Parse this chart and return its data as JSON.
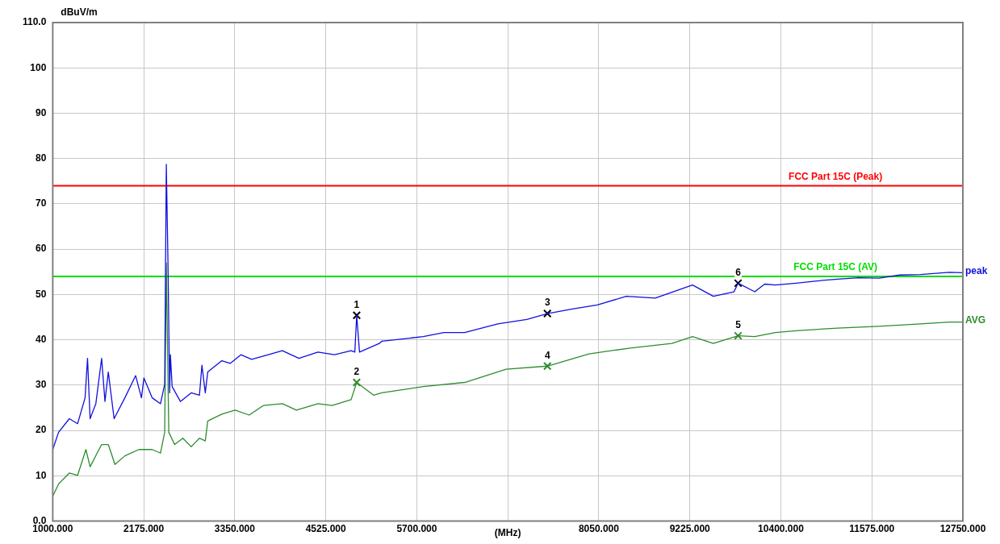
{
  "chart_data": {
    "type": "line",
    "xlabel": "(MHz)",
    "ylabel": "dBuV/m",
    "xlim": [
      1000,
      12750
    ],
    "xticks": [
      {
        "value": 1000,
        "label": "1000.000"
      },
      {
        "value": 2175,
        "label": "2175.000"
      },
      {
        "value": 3350,
        "label": "3350.000"
      },
      {
        "value": 4525,
        "label": "4525.000"
      },
      {
        "value": 5700,
        "label": "5700.000"
      },
      {
        "value": 6875,
        "label": null
      },
      {
        "value": 8050,
        "label": "8050.000"
      },
      {
        "value": 9225,
        "label": "9225.000"
      },
      {
        "value": 10400,
        "label": "10400.000"
      },
      {
        "value": 11575,
        "label": "11575.000"
      },
      {
        "value": 12750,
        "label": "12750.000"
      }
    ],
    "ylim": [
      0,
      110
    ],
    "yticks": [
      {
        "value": 0,
        "label": "0.0"
      },
      10,
      20,
      30,
      40,
      50,
      60,
      70,
      80,
      90,
      100,
      {
        "value": 110,
        "label": "110.0"
      }
    ],
    "grid": true,
    "series": [
      {
        "name": "peak",
        "type": "line",
        "marker": "none",
        "color": "#1010e0",
        "x": [
          1000,
          1075,
          1214,
          1321,
          1417,
          1449,
          1482,
          1556,
          1631,
          1674,
          1717,
          1792,
          1931,
          2070,
          2145,
          2177,
          2284,
          2391,
          2445,
          2466,
          2487,
          2509,
          2519,
          2541,
          2648,
          2787,
          2894,
          2926,
          2969,
          3001,
          3183,
          3290,
          3429,
          3568,
          3782,
          3964,
          4178,
          4424,
          4638,
          4852,
          4900,
          4924,
          4960,
          5216,
          5248,
          5783,
          6050,
          6318,
          6746,
          7120,
          7386,
          7709,
          8030,
          8404,
          8779,
          9260,
          9528,
          9795,
          9848,
          10063,
          10191,
          10330,
          10598,
          10865,
          11133,
          11400,
          11668,
          11935,
          12203,
          12577,
          12750
        ],
        "values": [
          15.8,
          19.6,
          22.6,
          21.5,
          27.2,
          35.9,
          22.6,
          25.9,
          35.9,
          26.4,
          32.9,
          22.6,
          27.2,
          32.1,
          27.2,
          31.6,
          27.2,
          25.9,
          30.2,
          78.7,
          57.6,
          28.3,
          36.7,
          29.7,
          26.4,
          28.3,
          27.8,
          34.4,
          28.3,
          32.9,
          35.4,
          34.8,
          36.7,
          35.7,
          36.7,
          37.6,
          35.9,
          37.3,
          36.7,
          37.6,
          37.3,
          45.4,
          37.3,
          39.2,
          39.7,
          40.7,
          41.6,
          41.6,
          43.5,
          44.5,
          45.8,
          46.8,
          47.7,
          49.6,
          49.2,
          52.1,
          49.6,
          50.6,
          52.5,
          50.6,
          52.3,
          52.1,
          52.5,
          53.0,
          53.4,
          53.7,
          53.6,
          54.3,
          54.4,
          54.9,
          54.8
        ]
      },
      {
        "name": "AVG",
        "type": "line",
        "marker": "none",
        "color": "#2e8b2e",
        "x": [
          1000,
          1075,
          1214,
          1321,
          1428,
          1482,
          1631,
          1717,
          1803,
          1931,
          2113,
          2284,
          2391,
          2445,
          2466,
          2498,
          2573,
          2680,
          2787,
          2894,
          2969,
          3001,
          3183,
          3354,
          3536,
          3718,
          3964,
          4146,
          4424,
          4606,
          4852,
          4924,
          5141,
          5248,
          5783,
          6318,
          6853,
          7386,
          7923,
          8458,
          8993,
          9260,
          9528,
          9848,
          10063,
          10330,
          10598,
          11133,
          11668,
          12203,
          12577,
          12750
        ],
        "values": [
          5.5,
          8.2,
          10.6,
          10.1,
          15.8,
          12.0,
          16.9,
          16.9,
          12.5,
          14.4,
          15.8,
          15.8,
          15.0,
          19.6,
          57.0,
          19.6,
          16.9,
          18.3,
          16.4,
          18.3,
          17.7,
          22.1,
          23.6,
          24.5,
          23.4,
          25.5,
          25.9,
          24.5,
          25.9,
          25.5,
          26.8,
          30.6,
          27.8,
          28.3,
          29.7,
          30.6,
          33.5,
          34.2,
          36.9,
          38.2,
          39.2,
          40.7,
          39.2,
          40.9,
          40.7,
          41.6,
          42.0,
          42.6,
          43.0,
          43.5,
          43.9,
          43.9
        ]
      },
      {
        "type": "scatter",
        "marker": "cross",
        "color": "#000000",
        "x": [
          4924,
          7386,
          9848
        ],
        "values": [
          45.4,
          45.8,
          52.5
        ]
      },
      {
        "type": "scatter",
        "marker": "cross",
        "color": "#2e8b2e",
        "x": [
          4924,
          7386,
          9848
        ],
        "values": [
          30.6,
          34.2,
          40.9
        ]
      }
    ],
    "ref_lines": [
      {
        "axis": "y",
        "value": 74,
        "label": "FCC Part 15C (Peak)",
        "color": "#ff0000"
      },
      {
        "axis": "y",
        "value": 54,
        "label": "FCC Part 15C (AV)",
        "color": "#00dd00"
      }
    ],
    "annotations": [
      {
        "text": "1",
        "x": 4924,
        "y": 45.4
      },
      {
        "text": "2",
        "x": 4924,
        "y": 30.6
      },
      {
        "text": "3",
        "x": 7386,
        "y": 45.8
      },
      {
        "text": "4",
        "x": 7386,
        "y": 34.2
      },
      {
        "text": "5",
        "x": 9848,
        "y": 40.9
      },
      {
        "text": "6",
        "x": 9848,
        "y": 52.5
      }
    ]
  }
}
